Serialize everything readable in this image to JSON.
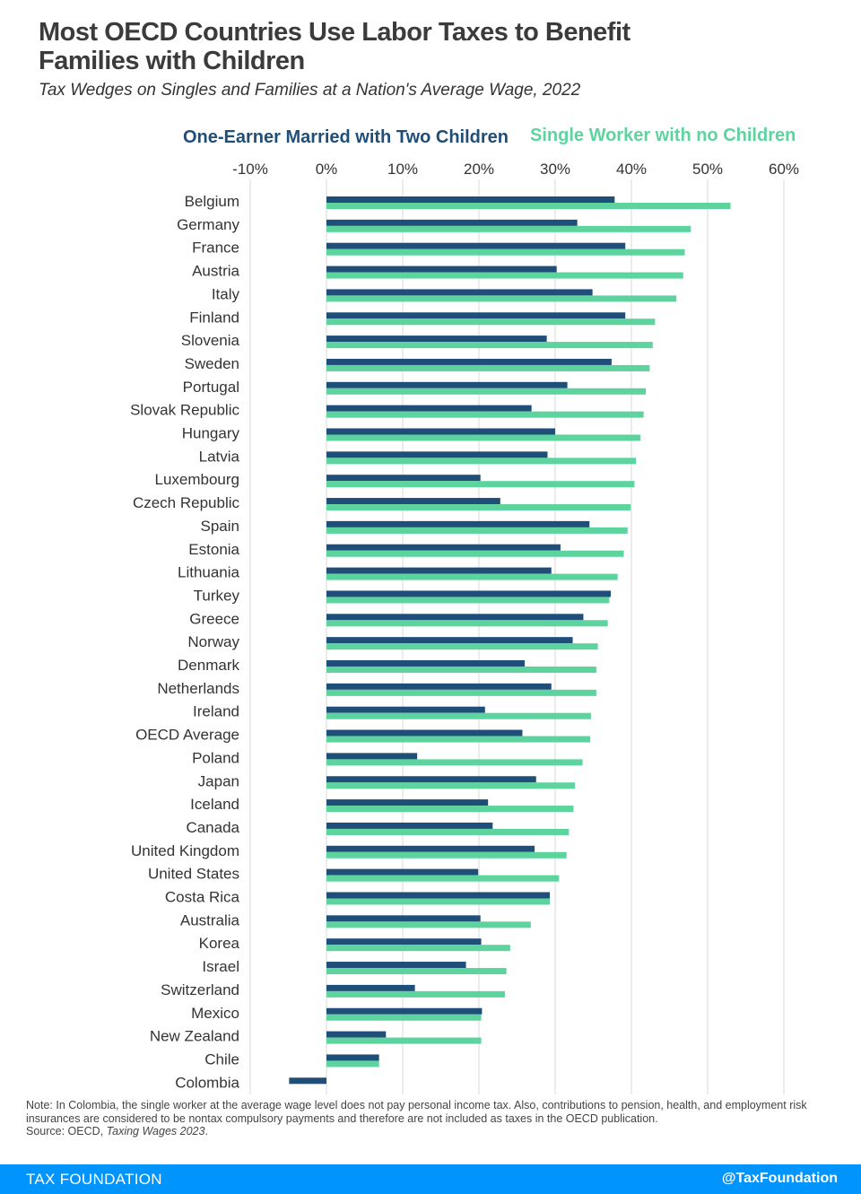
{
  "header": {
    "title": "Most OECD Countries Use Labor Taxes to Benefit Families with Children",
    "subtitle": "Tax Wedges on Singles and Families at a Nation's Average Wage, 2022"
  },
  "colors": {
    "married": "#1f4e79",
    "single": "#5dd39e",
    "grid": "#d9d9d9",
    "footer": "#0094ff"
  },
  "chart_data": {
    "type": "bar",
    "orientation": "horizontal",
    "title": "Most OECD Countries Use Labor Taxes to Benefit Families with Children",
    "subtitle": "Tax Wedges on Singles and Families at a Nation's Average Wage, 2022",
    "xlim": [
      -10,
      60
    ],
    "x_ticks": [
      -10,
      0,
      10,
      20,
      30,
      40,
      50,
      60
    ],
    "x_tick_labels": [
      "-10%",
      "0%",
      "10%",
      "20%",
      "30%",
      "40%",
      "50%",
      "60%"
    ],
    "grid": true,
    "legend_position": "top",
    "categories": [
      "Belgium",
      "Germany",
      "France",
      "Austria",
      "Italy",
      "Finland",
      "Slovenia",
      "Sweden",
      "Portugal",
      "Slovak Republic",
      "Hungary",
      "Latvia",
      "Luxembourg",
      "Czech Republic",
      "Spain",
      "Estonia",
      "Lithuania",
      "Turkey",
      "Greece",
      "Norway",
      "Denmark",
      "Netherlands",
      "Ireland",
      "OECD Average",
      "Poland",
      "Japan",
      "Iceland",
      "Canada",
      "United Kingdom",
      "United States",
      "Costa Rica",
      "Australia",
      "Korea",
      "Israel",
      "Switzerland",
      "Mexico",
      "New Zealand",
      "Chile",
      "Colombia"
    ],
    "series": [
      {
        "name": "One-Earner Married with Two Children",
        "values": [
          37.8,
          32.9,
          39.2,
          30.2,
          34.9,
          39.2,
          28.9,
          37.4,
          31.6,
          26.9,
          30,
          29,
          20.2,
          22.8,
          34.5,
          30.7,
          29.5,
          37.3,
          33.7,
          32.3,
          26,
          29.5,
          20.8,
          25.7,
          11.9,
          27.5,
          21.2,
          21.8,
          27.3,
          19.9,
          29.3,
          20.2,
          20.3,
          18.3,
          11.6,
          20.4,
          7.8,
          6.9,
          -4.9
        ]
      },
      {
        "name": "Single Worker with no Children",
        "values": [
          53,
          47.8,
          47,
          46.8,
          45.9,
          43.1,
          42.8,
          42.4,
          41.9,
          41.6,
          41.2,
          40.6,
          40.4,
          39.9,
          39.5,
          39,
          38.2,
          37.1,
          36.9,
          35.6,
          35.4,
          35.4,
          34.7,
          34.6,
          33.6,
          32.6,
          32.4,
          31.8,
          31.5,
          30.5,
          29.3,
          26.8,
          24.1,
          23.6,
          23.4,
          20.3,
          20.3,
          6.9,
          0
        ]
      }
    ]
  },
  "note": {
    "text": "Note: In Colombia, the single worker at the average wage level does not pay personal income tax. Also, contributions to pension, health, and employment risk insurances are considered to be nontax compulsory payments and therefore are not included as taxes in the OECD publication.",
    "source_prefix": "Source: OECD, ",
    "source_title": "Taxing Wages 2023",
    "source_suffix": "."
  },
  "footer": {
    "brand": "TAX FOUNDATION",
    "handle": "@TaxFoundation"
  }
}
